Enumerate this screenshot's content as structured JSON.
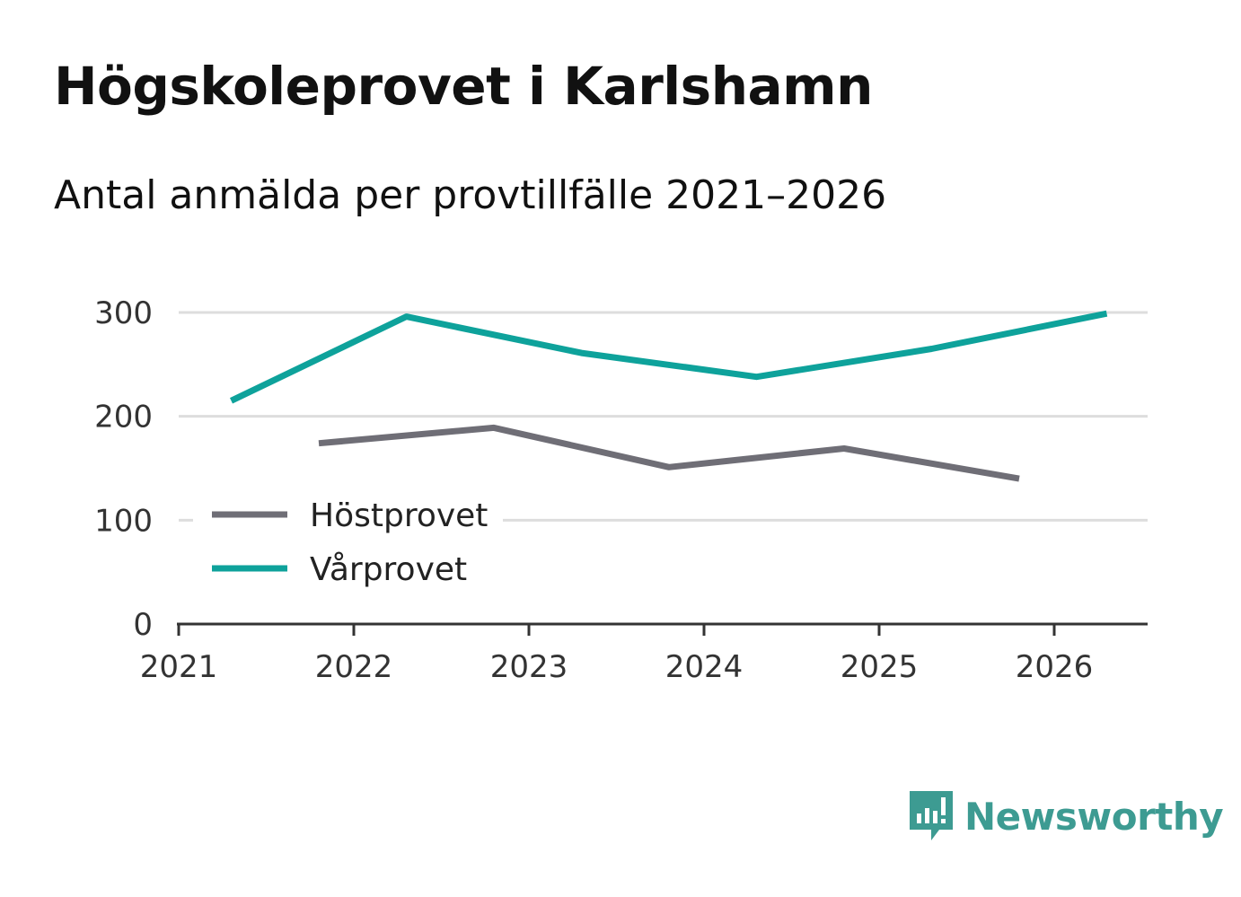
{
  "title": "Högskoleprovet i Karlshamn",
  "subtitle": "Antal anmälda per provtillfälle 2021–2026",
  "brand": {
    "name": "Newsworthy",
    "color": "#3d9b92"
  },
  "chart_data": {
    "type": "line",
    "title": "Högskoleprovet i Karlshamn",
    "subtitle": "Antal anmälda per provtillfälle 2021–2026",
    "xlabel": "",
    "ylabel": "",
    "xlim": [
      2021,
      2026.55
    ],
    "ylim": [
      0,
      300
    ],
    "x_ticks": [
      "2021",
      "2022",
      "2023",
      "2024",
      "2025",
      "2026"
    ],
    "y_ticks": [
      "0",
      "100",
      "200",
      "300"
    ],
    "grid": true,
    "legend_position": "bottom-left",
    "series": [
      {
        "name": "Höstprovet",
        "color": "#6f6e76",
        "x": [
          2021.8,
          2022.8,
          2023.8,
          2024.8,
          2025.8
        ],
        "values": [
          174,
          189,
          151,
          169,
          140
        ]
      },
      {
        "name": "Vårprovet",
        "color": "#0ea29b",
        "x": [
          2021.3,
          2022.3,
          2023.3,
          2024.3,
          2025.3,
          2026.3
        ],
        "values": [
          215,
          296,
          261,
          238,
          265,
          299
        ]
      }
    ]
  }
}
